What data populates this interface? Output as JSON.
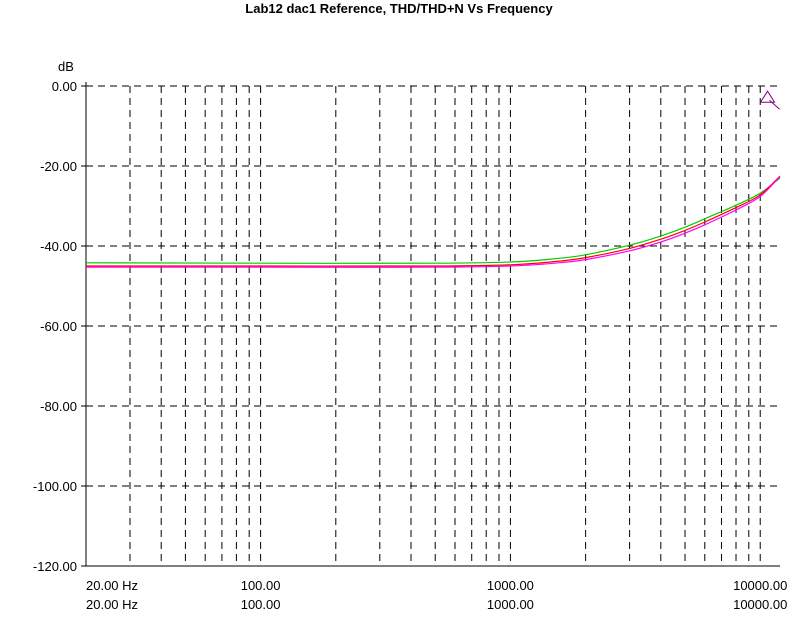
{
  "chart_data": {
    "type": "line",
    "title": "Lab12 dac1 Reference, THD/THD+N Vs Frequency",
    "ylabel": "dB",
    "xlabel": "",
    "x_scale": "log",
    "xlim": [
      20,
      12000
    ],
    "ylim": [
      -120,
      0
    ],
    "grid": true,
    "grid_style": "dashed",
    "y_ticks": [
      0,
      -20,
      -40,
      -60,
      -80,
      -100,
      -120
    ],
    "y_tick_labels": [
      "0.00",
      "-20.00",
      "-40.00",
      "-60.00",
      "-80.00",
      "-100.00",
      "-120.00"
    ],
    "x_tick_labels_row1": [
      "20.00 Hz",
      "100.00",
      "1000.00",
      "10000.00"
    ],
    "x_tick_labels_row2": [
      "20.00 Hz",
      "100.00",
      "1000.00",
      "10000.00"
    ],
    "x_tick_values": [
      20,
      100,
      1000,
      10000
    ],
    "x_minor_gridlines": [
      30,
      40,
      50,
      60,
      70,
      80,
      90,
      100,
      200,
      300,
      400,
      500,
      600,
      700,
      800,
      900,
      1000,
      2000,
      3000,
      4000,
      5000,
      6000,
      7000,
      8000,
      9000,
      10000
    ],
    "series": [
      {
        "color": "#00cc00",
        "x": [
          20,
          100,
          500,
          1000,
          1500,
          2000,
          3000,
          4000,
          5000,
          6000,
          8000,
          10000,
          12000
        ],
        "y": [
          -44.2,
          -44.3,
          -44.3,
          -44.0,
          -43.2,
          -42.2,
          -39.8,
          -37.5,
          -35.3,
          -33.2,
          -29.8,
          -26.8,
          -23.0
        ]
      },
      {
        "color": "#ff0000",
        "x": [
          20,
          100,
          500,
          1000,
          1500,
          2000,
          3000,
          4000,
          5000,
          6000,
          8000,
          10000,
          12000
        ],
        "y": [
          -45.0,
          -45.0,
          -45.0,
          -44.7,
          -43.9,
          -42.9,
          -40.6,
          -38.3,
          -36.1,
          -34.0,
          -30.4,
          -27.2,
          -22.5
        ]
      },
      {
        "color": "#ff00ff",
        "x": [
          20,
          100,
          500,
          1000,
          1500,
          2000,
          3000,
          4000,
          5000,
          6000,
          8000,
          10000,
          12000
        ],
        "y": [
          -45.3,
          -45.3,
          -45.3,
          -45.0,
          -44.3,
          -43.4,
          -41.2,
          -39.0,
          -36.8,
          -34.7,
          -31.0,
          -27.6,
          -22.6
        ]
      }
    ],
    "cursor_marker": {
      "x": 10700,
      "y": -2.8,
      "color": "#800080"
    }
  }
}
